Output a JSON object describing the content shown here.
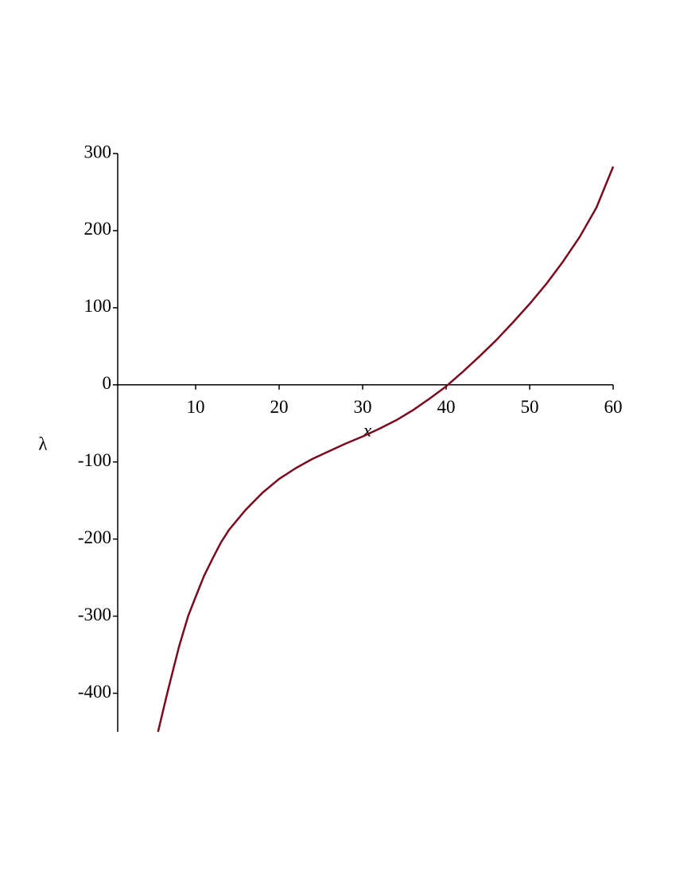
{
  "chart_data": {
    "type": "line",
    "x_label": "x",
    "y_label": "λ",
    "x": [
      5.5,
      6.6,
      8,
      9.1,
      10,
      11,
      12,
      13,
      14,
      16,
      18,
      20,
      22,
      24,
      26,
      28,
      30,
      32,
      34,
      36,
      38,
      40,
      42,
      44,
      46,
      48,
      50,
      52,
      54,
      56,
      58,
      60
    ],
    "series": [
      {
        "color": "#7b0a1e",
        "values": [
          -450,
          -400,
          -340,
          -300,
          -275,
          -248,
          -226,
          -205,
          -188,
          -162,
          -140,
          -122,
          -108,
          -96,
          -86,
          -76,
          -67,
          -57,
          -46,
          -33,
          -18,
          -2,
          17,
          37,
          58,
          81,
          105,
          131,
          160,
          192,
          230,
          283
        ]
      }
    ],
    "xlim": [
      0.67,
      60
    ],
    "ylim": [
      -450,
      300
    ],
    "xticks": [
      10,
      20,
      30,
      40,
      50,
      60
    ],
    "yticks": [
      -400,
      -300,
      -200,
      -100,
      0,
      100,
      200,
      300
    ]
  }
}
